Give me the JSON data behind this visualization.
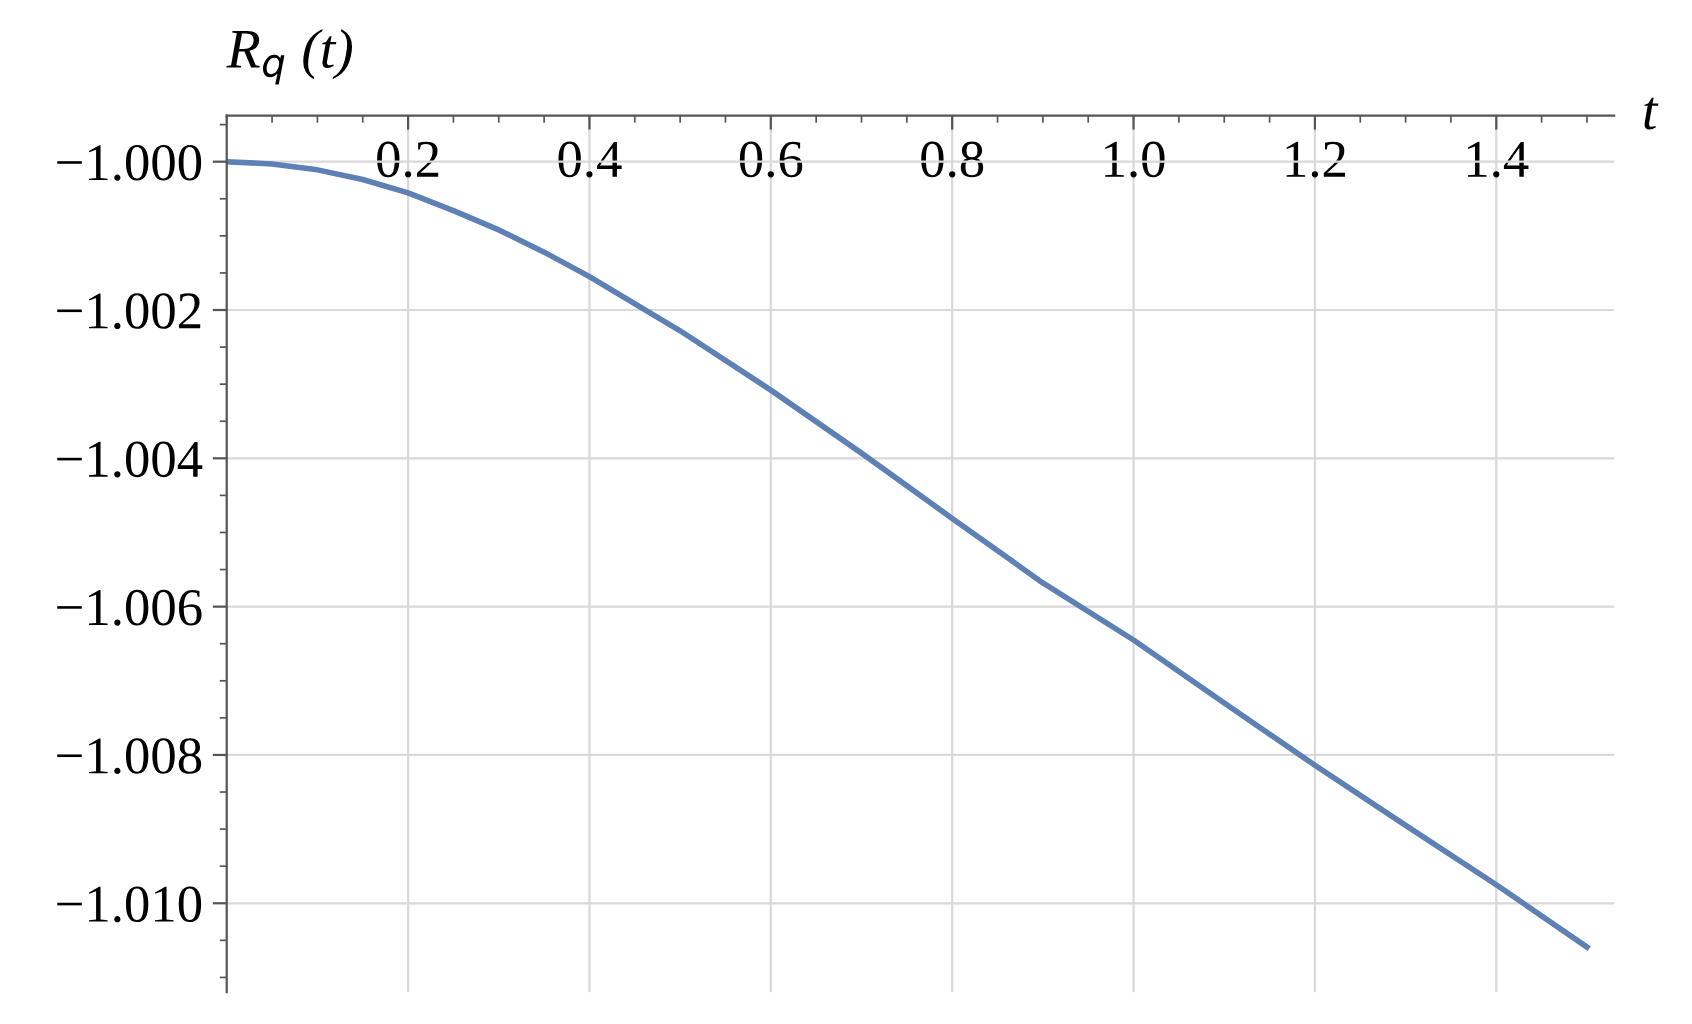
{
  "chart_data": {
    "type": "line",
    "xlabel": "t",
    "ylabel": "R$_{q}$ (t)",
    "x": [
      0,
      0.05,
      0.1,
      0.15,
      0.2,
      0.25,
      0.3,
      0.35,
      0.4,
      0.5,
      0.6,
      0.7,
      0.8,
      0.9,
      1.0,
      1.1,
      1.2,
      1.3,
      1.4,
      1.5
    ],
    "series": [
      {
        "color": "#5e81b5",
        "values": [
          -1.0,
          -1.00003,
          -1.00011,
          -1.00024,
          -1.00042,
          -1.00066,
          -1.00092,
          -1.00122,
          -1.00155,
          -1.00228,
          -1.00308,
          -1.00393,
          -1.00481,
          -1.00568,
          -1.00645,
          -1.0073,
          -1.00814,
          -1.00895,
          -1.00975,
          -1.01059
        ]
      }
    ],
    "xlim": [
      0,
      1.53
    ],
    "ylim": [
      -1.0112,
      -0.99938
    ],
    "xticks": [
      0.2,
      0.4,
      0.6,
      0.8,
      {
        "value": 1.0,
        "label": "1.0"
      },
      1.2,
      1.4
    ],
    "yticks": [
      {
        "value": -1.0,
        "label": "−1.000"
      },
      {
        "value": -1.002,
        "label": "−1.002"
      },
      {
        "value": -1.004,
        "label": "−1.004"
      },
      {
        "value": -1.006,
        "label": "−1.006"
      },
      {
        "value": -1.008,
        "label": "−1.008"
      },
      {
        "value": -1.01,
        "label": "−1.010"
      }
    ],
    "grid": true,
    "marker": "none",
    "line_style": "solid",
    "legend": false
  }
}
